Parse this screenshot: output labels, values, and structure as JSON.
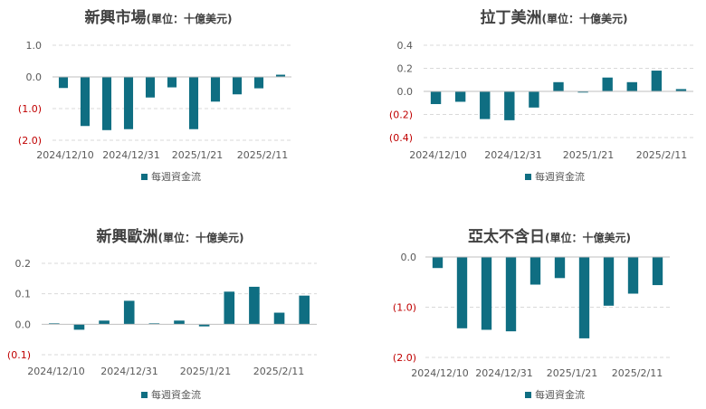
{
  "colors": {
    "bar": "#0f6e82",
    "grid": "#d9d9d9",
    "axis": "#bfbfbf",
    "text": "#595959",
    "negative_tick": "#c00000",
    "title": "#404040"
  },
  "chart_data": [
    {
      "type": "bar",
      "title": "新興市場",
      "subtitle": "(單位：十億美元)",
      "ylim": [
        -2.0,
        1.0
      ],
      "yticks": [
        "1.0",
        "0.0",
        "(1.0)",
        "(2.0)"
      ],
      "ytick_values": [
        1.0,
        0.0,
        -1.0,
        -2.0
      ],
      "grid": true,
      "legend_position": "bottom",
      "x_labels": [
        "2024/12/10",
        "2024/12/31",
        "2025/1/21",
        "2025/2/11"
      ],
      "series": [
        {
          "name": "每週資金流",
          "values": [
            -0.35,
            -1.55,
            -1.68,
            -1.65,
            -0.65,
            -0.33,
            -1.65,
            -0.78,
            -0.55,
            -0.36,
            0.07
          ]
        }
      ]
    },
    {
      "type": "bar",
      "title": "拉丁美洲",
      "subtitle": "(單位：十億美元)",
      "ylim": [
        -0.4,
        0.4
      ],
      "yticks": [
        "0.4",
        "0.2",
        "0.0",
        "(0.2)",
        "(0.4)"
      ],
      "ytick_values": [
        0.4,
        0.2,
        0.0,
        -0.2,
        -0.4
      ],
      "grid": true,
      "legend_position": "bottom",
      "x_labels": [
        "2024/12/10",
        "2024/12/31",
        "2025/1/21",
        "2025/2/11"
      ],
      "series": [
        {
          "name": "每週資金流",
          "values": [
            -0.11,
            -0.09,
            -0.24,
            -0.25,
            -0.14,
            0.08,
            -0.01,
            0.12,
            0.08,
            0.18,
            0.02
          ]
        }
      ]
    },
    {
      "type": "bar",
      "title": "新興歐洲",
      "subtitle": "(單位：十億美元)",
      "ylim": [
        -0.1,
        0.2
      ],
      "yticks": [
        "0.2",
        "0.1",
        "0.0",
        "(0.1)"
      ],
      "ytick_values": [
        0.2,
        0.1,
        0.0,
        -0.1
      ],
      "grid": true,
      "legend_position": "bottom",
      "x_labels": [
        "2024/12/10",
        "2024/12/31",
        "2025/1/21",
        "2025/2/11"
      ],
      "series": [
        {
          "name": "每週資金流",
          "values": [
            0.003,
            -0.018,
            0.012,
            0.077,
            0.003,
            0.012,
            -0.007,
            0.107,
            0.123,
            0.038,
            0.094
          ]
        }
      ]
    },
    {
      "type": "bar",
      "title": "亞太不含日",
      "subtitle": "(單位：十億美元)",
      "ylim": [
        -2.0,
        0.0
      ],
      "yticks": [
        "0.0",
        "(1.0)",
        "(2.0)"
      ],
      "ytick_values": [
        0.0,
        -1.0,
        -2.0
      ],
      "grid": true,
      "legend_position": "bottom",
      "x_labels": [
        "2024/12/10",
        "2024/12/31",
        "2025/1/21",
        "2025/2/11"
      ],
      "series": [
        {
          "name": "每週資金流",
          "values": [
            -0.22,
            -1.42,
            -1.45,
            -1.48,
            -0.55,
            -0.42,
            -1.62,
            -0.97,
            -0.73,
            -0.56
          ]
        }
      ]
    }
  ]
}
